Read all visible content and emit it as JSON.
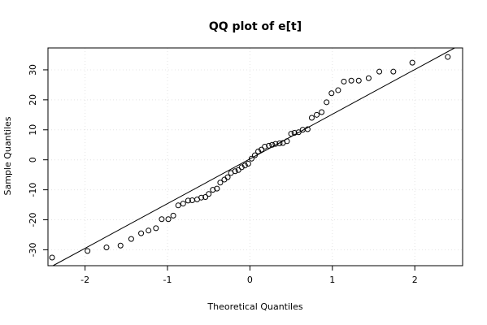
{
  "chart_data": {
    "type": "scatter",
    "title": "QQ plot of e[t]",
    "xlabel": "Theoretical Quantiles",
    "ylabel": "Sample Quantiles",
    "xlim": [
      -2.45,
      2.58
    ],
    "ylim": [
      -35.3,
      37.3
    ],
    "xticks": [
      -2,
      -1,
      0,
      1,
      2
    ],
    "yticks": [
      -30,
      -20,
      -10,
      0,
      10,
      20,
      30
    ],
    "grid": true,
    "legend": "none",
    "point_color": "#000000",
    "line_color": "#000000",
    "reference_line": {
      "intercept": 0.3,
      "slope": 14.9
    },
    "points": [
      [
        -2.4,
        -32.6
      ],
      [
        -1.97,
        -30.4
      ],
      [
        -1.74,
        -29.2
      ],
      [
        -1.57,
        -28.6
      ],
      [
        -1.44,
        -26.4
      ],
      [
        -1.32,
        -24.5
      ],
      [
        -1.23,
        -23.6
      ],
      [
        -1.14,
        -22.8
      ],
      [
        -1.07,
        -19.8
      ],
      [
        -0.99,
        -19.8
      ],
      [
        -0.93,
        -18.6
      ],
      [
        -0.87,
        -15.2
      ],
      [
        -0.81,
        -14.6
      ],
      [
        -0.75,
        -13.6
      ],
      [
        -0.7,
        -13.5
      ],
      [
        -0.64,
        -13.2
      ],
      [
        -0.59,
        -12.6
      ],
      [
        -0.54,
        -12.4
      ],
      [
        -0.5,
        -11.4
      ],
      [
        -0.45,
        -10.0
      ],
      [
        -0.4,
        -9.6
      ],
      [
        -0.36,
        -7.6
      ],
      [
        -0.31,
        -6.6
      ],
      [
        -0.27,
        -5.8
      ],
      [
        -0.23,
        -4.4
      ],
      [
        -0.18,
        -3.8
      ],
      [
        -0.14,
        -3.4
      ],
      [
        -0.1,
        -2.5
      ],
      [
        -0.06,
        -1.9
      ],
      [
        -0.02,
        -1.3
      ],
      [
        0.02,
        0.4
      ],
      [
        0.06,
        1.5
      ],
      [
        0.1,
        2.8
      ],
      [
        0.14,
        3.4
      ],
      [
        0.18,
        4.4
      ],
      [
        0.23,
        4.7
      ],
      [
        0.27,
        5.0
      ],
      [
        0.31,
        5.3
      ],
      [
        0.36,
        5.5
      ],
      [
        0.4,
        5.6
      ],
      [
        0.45,
        6.2
      ],
      [
        0.5,
        8.7
      ],
      [
        0.54,
        9.0
      ],
      [
        0.59,
        9.2
      ],
      [
        0.64,
        10.0
      ],
      [
        0.7,
        10.2
      ],
      [
        0.75,
        14.0
      ],
      [
        0.81,
        15.0
      ],
      [
        0.87,
        15.9
      ],
      [
        0.93,
        19.2
      ],
      [
        0.99,
        22.2
      ],
      [
        1.07,
        23.2
      ],
      [
        1.14,
        26.1
      ],
      [
        1.23,
        26.4
      ],
      [
        1.32,
        26.4
      ],
      [
        1.44,
        27.2
      ],
      [
        1.57,
        29.4
      ],
      [
        1.74,
        29.4
      ],
      [
        1.97,
        32.4
      ],
      [
        2.4,
        34.3
      ]
    ]
  }
}
